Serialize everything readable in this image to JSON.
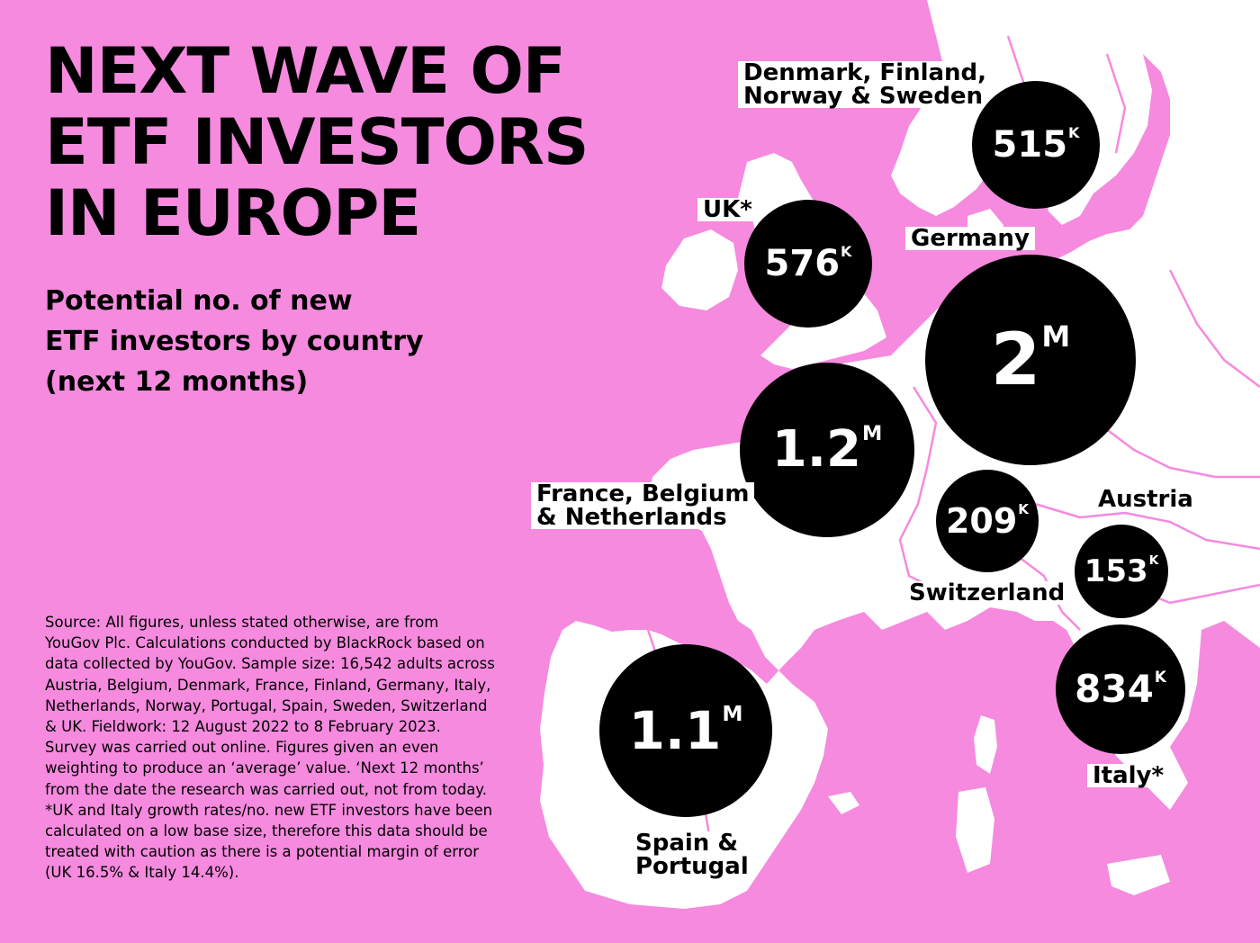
{
  "title_lines": [
    "NEXT WAVE OF",
    "ETF INVESTORS",
    "IN EUROPE"
  ],
  "subtitle_lines": [
    "Potential no. of new",
    "ETF investors by country",
    "(next 12 months)"
  ],
  "source": "Source: All figures, unless stated otherwise, are from YouGov Plc. Calculations conducted by BlackRock based on data collected by YouGov. Sample size: 16,542 adults across Austria, Belgium, Denmark, France, Finland, Germany, Italy, Netherlands, Norway, Portugal, Spain, Sweden, Switzerland & UK. Fieldwork: 12 August 2022 to 8 February 2023. Survey was carried out online. Figures given an even weighting to produce an ‘average’ value. ‘Next 12 months’ from the date the research was carried out, not from today. *UK and Italy growth rates/no. new ETF investors have been calculated on a low base size, therefore this data should be treated with caution as there is a potential margin of error (UK 16.5% & Italy 14.4%).",
  "colors": {
    "sea": "#f58ade",
    "land": "#ffffff",
    "bubble": "#000000",
    "bubble_text": "#ffffff"
  },
  "regions": {
    "nordics": {
      "label_lines": [
        "Denmark, Finland,",
        "Norway & Sweden"
      ],
      "value": "515",
      "unit": "K"
    },
    "uk": {
      "label_lines": [
        "UK*"
      ],
      "value": "576",
      "unit": "K"
    },
    "germany": {
      "label_lines": [
        "Germany"
      ],
      "value": "2",
      "unit": "M"
    },
    "france_benelux": {
      "label_lines": [
        "France, Belgium",
        "& Netherlands"
      ],
      "value": "1.2",
      "unit": "M"
    },
    "switzerland": {
      "label_lines": [
        "Switzerland"
      ],
      "value": "209",
      "unit": "K"
    },
    "austria": {
      "label_lines": [
        "Austria"
      ],
      "value": "153",
      "unit": "K"
    },
    "italy": {
      "label_lines": [
        "Italy*"
      ],
      "value": "834",
      "unit": "K"
    },
    "iberia": {
      "label_lines": [
        "Spain &",
        "Portugal"
      ],
      "value": "1.1",
      "unit": "M"
    }
  }
}
